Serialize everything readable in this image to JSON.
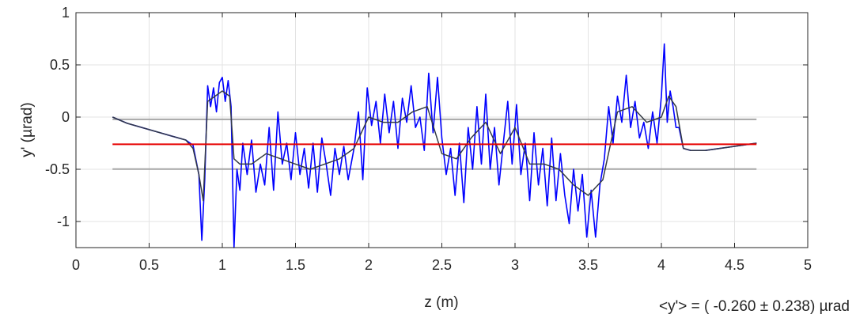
{
  "chart_data": {
    "type": "line",
    "xlabel": "z (m)",
    "ylabel": "y' (µrad)",
    "xlim": [
      0,
      5
    ],
    "ylim": [
      -1.25,
      1
    ],
    "xticks": [
      "0",
      "0.5",
      "1",
      "1.5",
      "2",
      "2.5",
      "3",
      "3.5",
      "4",
      "4.5",
      "5"
    ],
    "yticks": [
      "1",
      "0.5",
      "0",
      "-0.5",
      "-1"
    ],
    "grid": true,
    "annotation": "<y'> = ( -0.260 ± 0.238) µrad",
    "colors": {
      "raw": "#0000ff",
      "smoothed": "#333a44",
      "mean": "#e60000",
      "band": "#a6a6a6"
    },
    "reference_lines": [
      {
        "role": "mean",
        "y": -0.26,
        "x": [
          0.25,
          4.65
        ]
      },
      {
        "role": "upper-band",
        "y": -0.022,
        "x": [
          0.25,
          4.65
        ]
      },
      {
        "role": "lower-band",
        "y": -0.498,
        "x": [
          0.25,
          4.65
        ]
      }
    ],
    "series": [
      {
        "role": "raw",
        "x": [
          0.25,
          0.35,
          0.45,
          0.55,
          0.65,
          0.75,
          0.8,
          0.84,
          0.86,
          0.88,
          0.9,
          0.92,
          0.94,
          0.96,
          0.98,
          1.0,
          1.02,
          1.04,
          1.06,
          1.08,
          1.1,
          1.12,
          1.14,
          1.17,
          1.2,
          1.23,
          1.26,
          1.29,
          1.32,
          1.35,
          1.38,
          1.41,
          1.44,
          1.47,
          1.5,
          1.53,
          1.56,
          1.59,
          1.62,
          1.65,
          1.68,
          1.71,
          1.74,
          1.77,
          1.8,
          1.83,
          1.86,
          1.9,
          1.93,
          1.96,
          1.99,
          2.02,
          2.05,
          2.08,
          2.11,
          2.14,
          2.17,
          2.2,
          2.23,
          2.26,
          2.29,
          2.32,
          2.35,
          2.38,
          2.41,
          2.44,
          2.47,
          2.5,
          2.53,
          2.56,
          2.59,
          2.62,
          2.65,
          2.68,
          2.71,
          2.74,
          2.77,
          2.8,
          2.83,
          2.86,
          2.89,
          2.92,
          2.95,
          2.98,
          3.01,
          3.04,
          3.07,
          3.1,
          3.13,
          3.16,
          3.19,
          3.22,
          3.25,
          3.28,
          3.31,
          3.34,
          3.37,
          3.4,
          3.43,
          3.46,
          3.49,
          3.52,
          3.55,
          3.58,
          3.61,
          3.64,
          3.67,
          3.7,
          3.73,
          3.76,
          3.79,
          3.82,
          3.85,
          3.88,
          3.91,
          3.94,
          3.97,
          4.0,
          4.02,
          4.04,
          4.06,
          4.08,
          4.1,
          4.12,
          4.15,
          4.2,
          4.3,
          4.4,
          4.5,
          4.6,
          4.65
        ],
        "y": [
          0.0,
          -0.06,
          -0.1,
          -0.14,
          -0.18,
          -0.22,
          -0.27,
          -0.55,
          -1.18,
          -0.6,
          0.3,
          0.1,
          0.28,
          0.05,
          0.33,
          0.38,
          0.15,
          0.35,
          0.1,
          -1.25,
          -0.5,
          -0.7,
          -0.25,
          -0.55,
          -0.22,
          -0.72,
          -0.45,
          -0.65,
          -0.1,
          -0.7,
          0.05,
          -0.45,
          -0.25,
          -0.6,
          -0.15,
          -0.55,
          -0.3,
          -0.68,
          -0.25,
          -0.72,
          -0.2,
          -0.45,
          -0.75,
          -0.3,
          -0.55,
          -0.28,
          -0.6,
          -0.3,
          0.05,
          -0.6,
          0.28,
          -0.08,
          0.15,
          -0.25,
          0.22,
          -0.15,
          0.15,
          -0.3,
          0.18,
          -0.05,
          0.3,
          -0.1,
          0.0,
          -0.32,
          0.42,
          -0.15,
          0.38,
          -0.2,
          -0.55,
          -0.3,
          -0.75,
          -0.25,
          -0.82,
          -0.1,
          -0.5,
          0.1,
          -0.45,
          0.22,
          -0.5,
          -0.1,
          -0.65,
          -0.25,
          0.15,
          -0.45,
          0.12,
          -0.55,
          -0.25,
          -0.8,
          -0.15,
          -0.65,
          -0.3,
          -0.85,
          -0.2,
          -0.8,
          -0.35,
          -0.75,
          -1.02,
          -0.5,
          -0.9,
          -0.55,
          -1.15,
          -0.7,
          -1.15,
          -0.65,
          -0.4,
          0.1,
          -0.25,
          0.2,
          -0.05,
          0.4,
          -0.1,
          0.15,
          -0.2,
          -0.05,
          -0.3,
          0.05,
          -0.25,
          0.2,
          0.7,
          -0.05,
          0.25,
          0.1,
          -0.1,
          -0.1,
          -0.3,
          -0.32,
          -0.32,
          -0.3,
          -0.28,
          -0.26,
          -0.25
        ]
      },
      {
        "role": "smoothed",
        "x": [
          0.25,
          0.35,
          0.45,
          0.55,
          0.65,
          0.75,
          0.8,
          0.84,
          0.87,
          0.9,
          0.95,
          1.0,
          1.05,
          1.08,
          1.12,
          1.2,
          1.3,
          1.4,
          1.5,
          1.6,
          1.7,
          1.8,
          1.9,
          2.0,
          2.1,
          2.2,
          2.3,
          2.4,
          2.5,
          2.6,
          2.7,
          2.8,
          2.9,
          3.0,
          3.1,
          3.2,
          3.3,
          3.4,
          3.5,
          3.6,
          3.7,
          3.8,
          3.9,
          4.0,
          4.05,
          4.1,
          4.15,
          4.2,
          4.3,
          4.4,
          4.5,
          4.6,
          4.65
        ],
        "y": [
          0.0,
          -0.06,
          -0.1,
          -0.14,
          -0.18,
          -0.22,
          -0.3,
          -0.55,
          -0.8,
          0.15,
          0.2,
          0.25,
          0.2,
          -0.4,
          -0.45,
          -0.45,
          -0.35,
          -0.4,
          -0.45,
          -0.5,
          -0.45,
          -0.4,
          -0.3,
          0.0,
          -0.05,
          -0.05,
          0.05,
          0.1,
          -0.35,
          -0.4,
          -0.2,
          -0.05,
          -0.35,
          -0.1,
          -0.45,
          -0.45,
          -0.5,
          -0.65,
          -0.75,
          -0.6,
          0.05,
          0.1,
          -0.05,
          0.0,
          0.2,
          0.1,
          -0.3,
          -0.32,
          -0.32,
          -0.3,
          -0.28,
          -0.26,
          -0.25
        ]
      }
    ]
  }
}
